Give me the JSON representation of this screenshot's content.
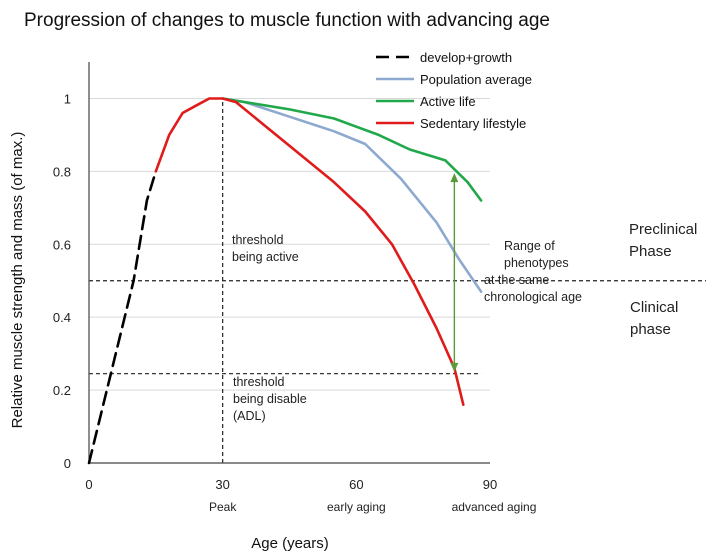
{
  "chart_data": {
    "type": "line",
    "title": "Progression of  changes to muscle function with advancing age",
    "xlabel": "Age (years)",
    "ylabel": "Relative muscle strength and mass (of max.)",
    "xlim": [
      0,
      90
    ],
    "ylim": [
      0,
      1.1
    ],
    "x_ticks": [
      0,
      30,
      60,
      90
    ],
    "x_tick_labels": [
      "0",
      "30",
      "60",
      "90"
    ],
    "x_sublabels": [
      {
        "x": 30,
        "text": "Peak"
      },
      {
        "x": 60,
        "text": "early aging"
      },
      {
        "x": 90,
        "text": "advanced aging"
      }
    ],
    "y_ticks": [
      0,
      0.2,
      0.4,
      0.6,
      0.8,
      1
    ],
    "y_tick_labels": [
      "0",
      "0.2",
      "0.4",
      "0.6",
      "0.8",
      "1"
    ],
    "grid": "horizontal",
    "legend_position": "top-right",
    "series": [
      {
        "name": "develop+growth",
        "color": "#000000",
        "style": "dashed",
        "points": [
          [
            0,
            0
          ],
          [
            5,
            0.25
          ],
          [
            10,
            0.5
          ],
          [
            13,
            0.72
          ],
          [
            15,
            0.8
          ]
        ]
      },
      {
        "name": "Population average",
        "color": "#8ea9cf",
        "style": "solid",
        "points": [
          [
            30,
            1.0
          ],
          [
            35,
            0.99
          ],
          [
            45,
            0.95
          ],
          [
            55,
            0.91
          ],
          [
            62,
            0.875
          ],
          [
            70,
            0.78
          ],
          [
            78,
            0.66
          ],
          [
            83,
            0.56
          ],
          [
            88,
            0.47
          ]
        ]
      },
      {
        "name": "Active life",
        "color": "#21a84a",
        "style": "solid",
        "points": [
          [
            30,
            1.0
          ],
          [
            35,
            0.99
          ],
          [
            45,
            0.97
          ],
          [
            55,
            0.945
          ],
          [
            65,
            0.9
          ],
          [
            72,
            0.86
          ],
          [
            80,
            0.83
          ],
          [
            85,
            0.77
          ],
          [
            88,
            0.72
          ]
        ]
      },
      {
        "name": "Sedentary lifestyle",
        "color": "#e01b1b",
        "style": "solid",
        "points": [
          [
            15,
            0.8
          ],
          [
            18,
            0.9
          ],
          [
            21,
            0.96
          ],
          [
            24,
            0.98
          ],
          [
            27,
            1.0
          ],
          [
            30,
            1.0
          ],
          [
            33,
            0.99
          ],
          [
            40,
            0.92
          ],
          [
            48,
            0.84
          ],
          [
            55,
            0.77
          ],
          [
            62,
            0.69
          ],
          [
            68,
            0.6
          ],
          [
            73,
            0.49
          ],
          [
            78,
            0.37
          ],
          [
            82,
            0.26
          ],
          [
            84,
            0.16
          ]
        ]
      }
    ],
    "reference_lines": [
      {
        "type": "vertical",
        "x": 30,
        "y_from": 0,
        "y_to": 1.0,
        "style": "dotted"
      },
      {
        "type": "horizontal",
        "y": 0.5,
        "x_from": 0,
        "x_to": "right",
        "style": "dotted"
      },
      {
        "type": "horizontal",
        "y": 0.245,
        "x_from": 0,
        "x_to": 88,
        "style": "dotted"
      }
    ],
    "double_arrow": {
      "x": 82,
      "y_from": 0.795,
      "y_to": 0.25,
      "color": "#5a9a3a"
    },
    "annotations": [
      {
        "id": "threshold_active",
        "lines": [
          "threshold",
          "being active"
        ]
      },
      {
        "id": "threshold_disable",
        "lines": [
          "threshold",
          "being disable",
          "(ADL)"
        ]
      },
      {
        "id": "range",
        "lines": [
          "Range of",
          "phenotypes",
          " at the same",
          "chronological age"
        ]
      },
      {
        "id": "preclinical",
        "lines": [
          "Preclinical",
          "Phase"
        ]
      },
      {
        "id": "clinical",
        "lines": [
          "Clinical",
          "phase"
        ]
      }
    ]
  }
}
